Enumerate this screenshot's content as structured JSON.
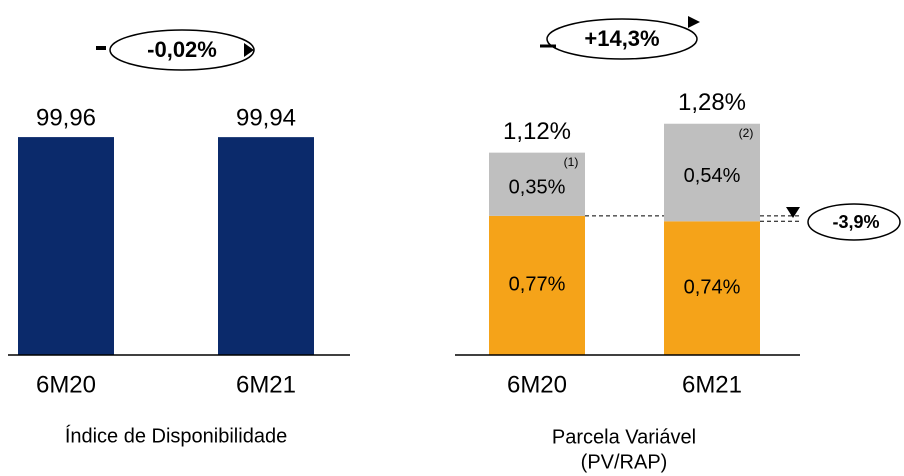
{
  "chart_data": [
    {
      "type": "bar",
      "title": "Índice de Disponibilidade",
      "categories": [
        "6M20",
        "6M21"
      ],
      "values": [
        99.96,
        99.94
      ],
      "value_labels": [
        "99,96",
        "99,94"
      ],
      "color": "#0b2a6b",
      "ylim": [
        0,
        100
      ],
      "annotation": "-0,02%"
    },
    {
      "type": "stacked_bar",
      "title": [
        "Parcela Variável",
        "(PV/RAP)"
      ],
      "categories": [
        "6M20",
        "6M21"
      ],
      "series": [
        {
          "color": "#f5a319",
          "values": [
            0.77,
            0.74
          ],
          "value_labels": [
            "0,77%",
            "0,74%"
          ]
        },
        {
          "color": "#bfbfbf",
          "values": [
            0.35,
            0.54
          ],
          "value_labels": [
            "0,35%",
            "0,54%"
          ],
          "notes": [
            "(1)",
            "(2)"
          ]
        }
      ],
      "totals": {
        "values": [
          1.12,
          1.28
        ],
        "value_labels": [
          "1,12%",
          "1,28%"
        ]
      },
      "ylim": [
        0,
        1.5
      ],
      "annotation": "+14,3%",
      "annotation2": "-3,9%"
    }
  ]
}
